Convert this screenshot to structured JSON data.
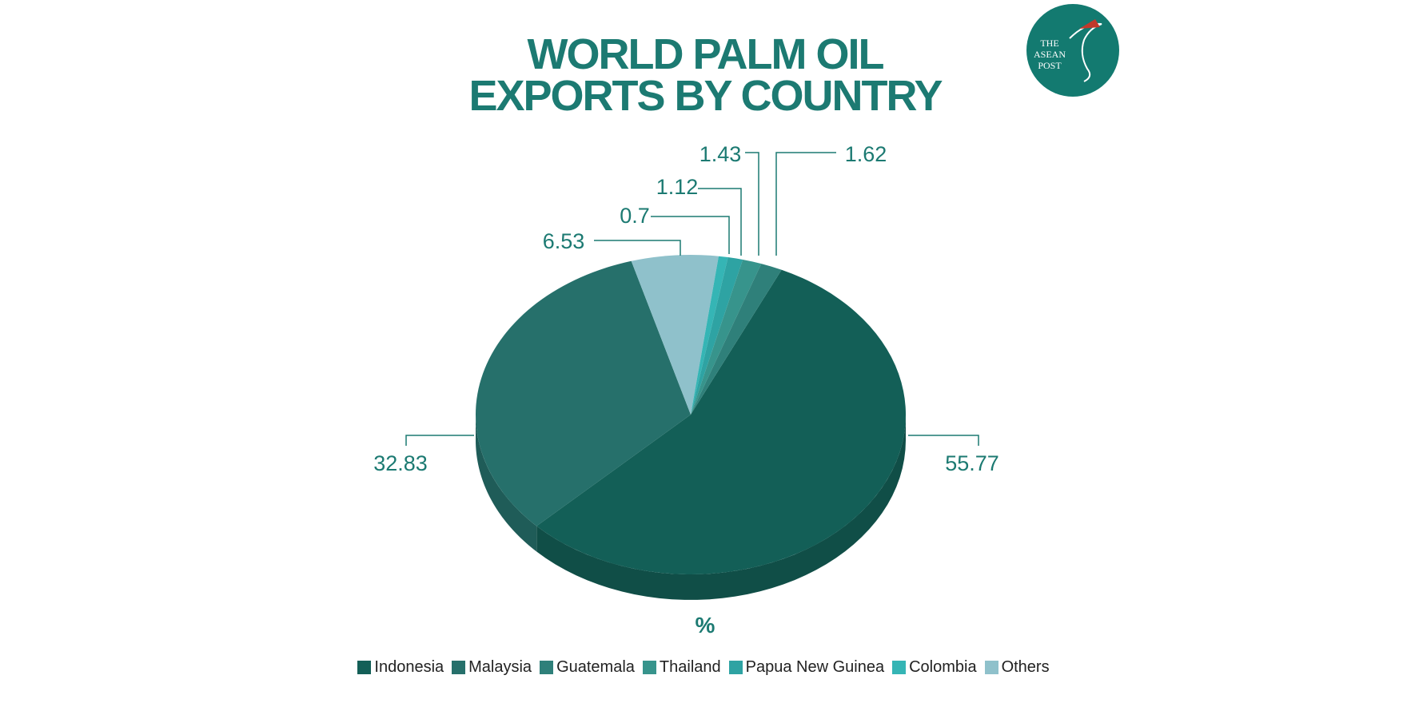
{
  "chart_data": {
    "type": "pie",
    "title": [
      "WORLD PALM OIL",
      "EXPORTS BY COUNTRY"
    ],
    "unit_label": "%",
    "categories": [
      "Indonesia",
      "Malaysia",
      "Guatemala",
      "Thailand",
      "Papua New Guinea",
      "Colombia",
      "Others"
    ],
    "values": [
      55.77,
      32.83,
      1.62,
      1.43,
      1.12,
      0.7,
      6.53
    ],
    "colors": [
      "#135f57",
      "#26706b",
      "#2f807a",
      "#37948c",
      "#2ea3a3",
      "#35b5b5",
      "#8fc1cb"
    ],
    "legend": "bottom"
  },
  "logo": [
    "THE",
    "ASEAN",
    "POST"
  ]
}
